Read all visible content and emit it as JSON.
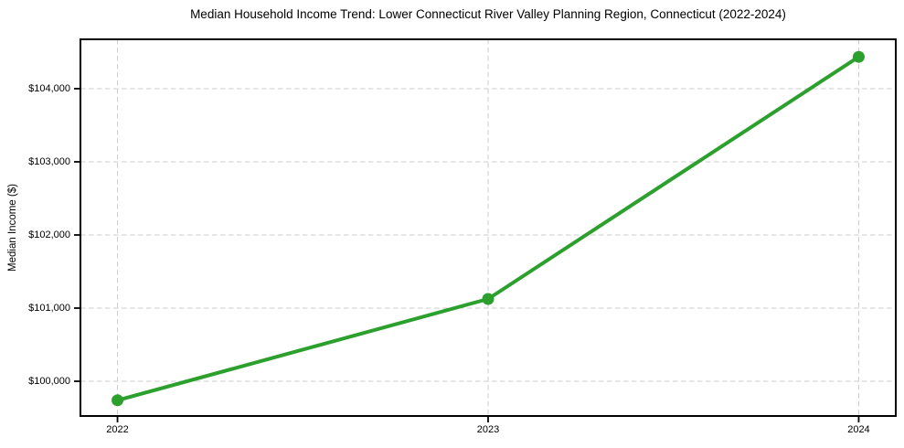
{
  "chart_data": {
    "type": "line",
    "title": "Median Household Income Trend: Lower Connecticut River Valley Planning Region, Connecticut (2022-2024)",
    "xlabel": "",
    "ylabel": "Median Income ($)",
    "x": [
      2022,
      2023,
      2024
    ],
    "values": [
      99740,
      101125,
      104435
    ],
    "xticks": [
      2022,
      2023,
      2024
    ],
    "xtick_labels": [
      "2022",
      "2023",
      "2024"
    ],
    "yticks": [
      100000,
      101000,
      102000,
      103000,
      104000
    ],
    "ytick_labels": [
      "$100,000",
      "$101,000",
      "$102,000",
      "$103,000",
      "$104,000"
    ],
    "xlim": [
      2021.9,
      2024.1
    ],
    "ylim": [
      99525,
      104675
    ],
    "grid": true,
    "grid_style": "dashed",
    "legend": "none",
    "line_color": "#2ca02c",
    "marker": "circle",
    "grid_color": "#cccccc",
    "axis_color": "#000000",
    "text_color": "#000000",
    "background_color": "#ffffff"
  }
}
